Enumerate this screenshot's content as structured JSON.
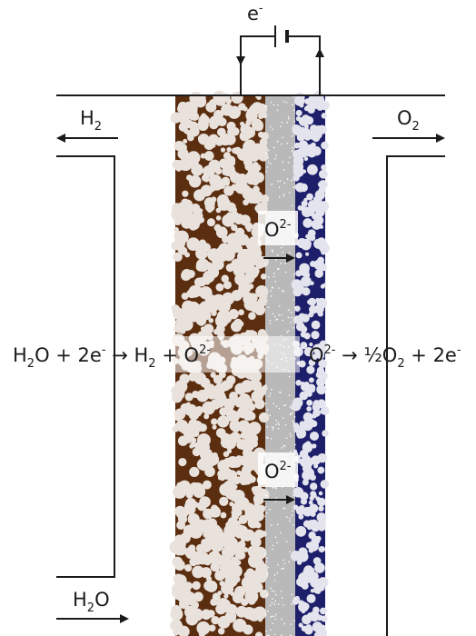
{
  "electron": [
    {
      "t": "e"
    },
    {
      "t": "-",
      "s": "sup"
    }
  ],
  "h2_out": [
    {
      "t": "H"
    },
    {
      "t": "2",
      "s": "sub"
    }
  ],
  "o2_out": [
    {
      "t": "O"
    },
    {
      "t": "2",
      "s": "sub"
    }
  ],
  "ion_top": [
    {
      "t": "O"
    },
    {
      "t": "2-",
      "s": "sup"
    }
  ],
  "ion_bottom": [
    {
      "t": "O"
    },
    {
      "t": "2-",
      "s": "sup"
    }
  ],
  "cathode_reaction": [
    {
      "t": "H"
    },
    {
      "t": "2",
      "s": "sub"
    },
    {
      "t": "O + 2e"
    },
    {
      "t": "-",
      "s": "sup"
    },
    {
      "t": " → H"
    },
    {
      "t": "2",
      "s": "sub"
    },
    {
      "t": " + O"
    },
    {
      "t": "2-",
      "s": "sup"
    }
  ],
  "anode_reaction": [
    {
      "t": "O"
    },
    {
      "t": "2-",
      "s": "sup"
    },
    {
      "t": " → ½O"
    },
    {
      "t": "2",
      "s": "sub"
    },
    {
      "t": " + 2e"
    },
    {
      "t": "-",
      "s": "sup"
    }
  ],
  "h2o_in": [
    {
      "t": "H"
    },
    {
      "t": "2",
      "s": "sub"
    },
    {
      "t": "O"
    }
  ]
}
